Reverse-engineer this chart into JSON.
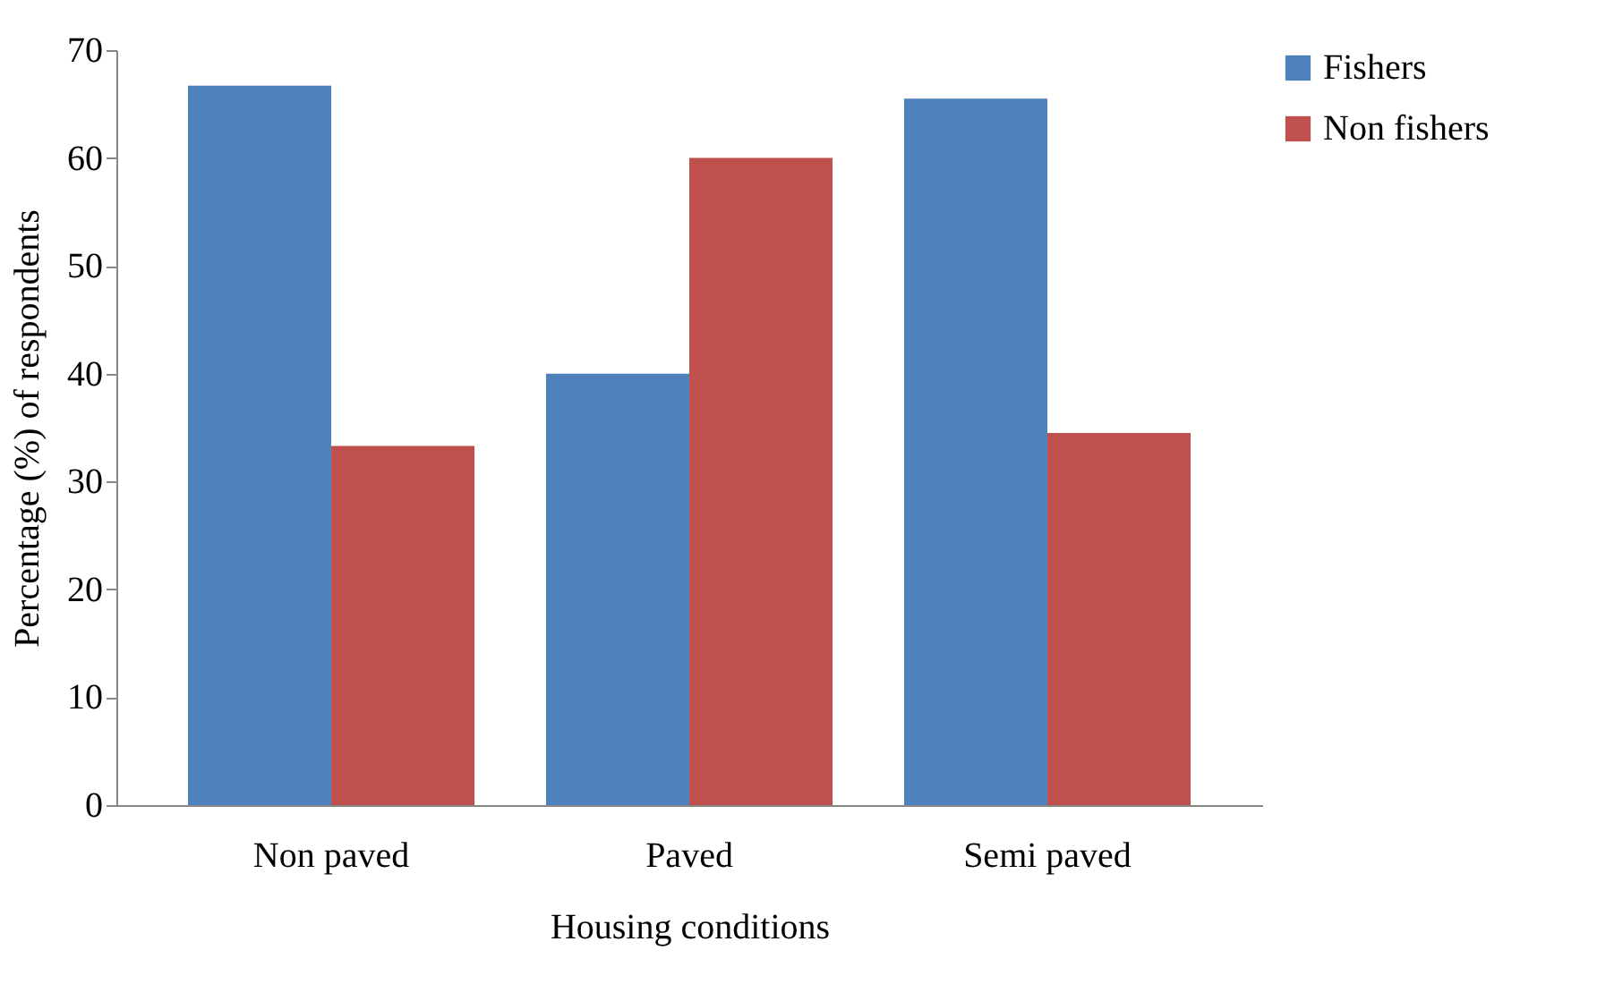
{
  "chart_data": {
    "type": "bar",
    "xlabel": "Housing conditions",
    "ylabel": "Percentage (%) of respondents",
    "categories": [
      "Non paved",
      "Paved",
      "Semi paved"
    ],
    "series": [
      {
        "name": "Fishers",
        "color": "#4f81bd",
        "values": [
          66.7,
          40,
          65.5
        ]
      },
      {
        "name": "Non fishers",
        "color": "#c0504d",
        "values": [
          33.3,
          60,
          34.5
        ]
      }
    ],
    "ylim": [
      0,
      70
    ],
    "yticks": [
      0,
      10,
      20,
      30,
      40,
      50,
      60,
      70
    ],
    "grid": false,
    "legend": "right"
  }
}
